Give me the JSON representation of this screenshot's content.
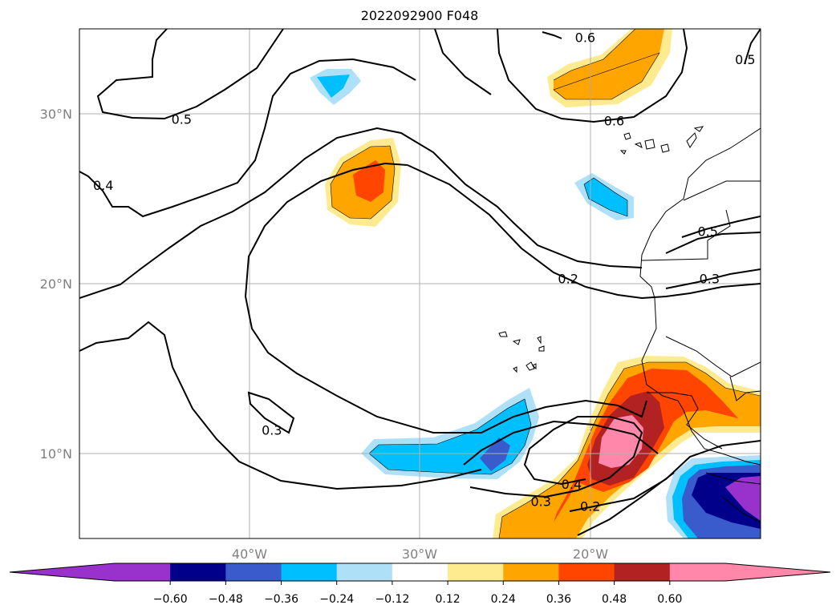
{
  "chart_data": {
    "type": "contour-map",
    "title": "2022092900 F048",
    "x_axis": {
      "range": [
        -50,
        -10
      ],
      "ticks": [
        -40,
        -30,
        -20
      ],
      "tick_labels": [
        "40°W",
        "30°W",
        "20°W"
      ]
    },
    "y_axis": {
      "range": [
        5,
        35
      ],
      "ticks": [
        10,
        20,
        30
      ],
      "tick_labels": [
        "10°N",
        "20°N",
        "30°N"
      ]
    },
    "grid": true,
    "colorbar": {
      "orientation": "horizontal",
      "extend": "both",
      "levels": [
        -0.72,
        -0.6,
        -0.48,
        -0.36,
        -0.24,
        -0.12,
        0.12,
        0.24,
        0.36,
        0.48,
        0.6,
        0.72
      ],
      "colors": [
        "#9932cc",
        "#00008b",
        "#3a5bcc",
        "#00bfff",
        "#aee1f8",
        "#ffffff",
        "#ffeb8f",
        "#ffa500",
        "#ff4500",
        "#b22222",
        "#ff88aa"
      ],
      "extend_colors": {
        "under": "#9932cc",
        "over": "#ff88aa"
      },
      "tick_labels": [
        "−0.60",
        "−0.48",
        "−0.36",
        "−0.24",
        "−0.12",
        "0.12",
        "0.24",
        "0.36",
        "0.48",
        "0.60"
      ],
      "tick_values": [
        -0.6,
        -0.48,
        -0.36,
        -0.24,
        -0.12,
        0.12,
        0.24,
        0.36,
        0.48,
        0.6
      ]
    },
    "contour_labels": [
      {
        "text": "0.5",
        "lon": -44.0,
        "lat": 29.7
      },
      {
        "text": "0.4",
        "lon": -48.6,
        "lat": 25.8
      },
      {
        "text": "0.6",
        "lon": -18.6,
        "lat": 29.6
      },
      {
        "text": "0.6",
        "lon": -20.3,
        "lat": 34.5
      },
      {
        "text": "0.5",
        "lon": -10.9,
        "lat": 33.2
      },
      {
        "text": "0.2",
        "lon": -21.3,
        "lat": 20.3
      },
      {
        "text": "0.5",
        "lon": -13.1,
        "lat": 23.1
      },
      {
        "text": "0.3",
        "lon": -13.0,
        "lat": 20.3
      },
      {
        "text": "0.3",
        "lon": -38.7,
        "lat": 11.4
      },
      {
        "text": "0.4",
        "lon": -21.1,
        "lat": 8.2
      },
      {
        "text": "0.3",
        "lon": -22.9,
        "lat": 7.2
      },
      {
        "text": "0.2",
        "lon": -20.0,
        "lat": 6.9
      }
    ]
  }
}
